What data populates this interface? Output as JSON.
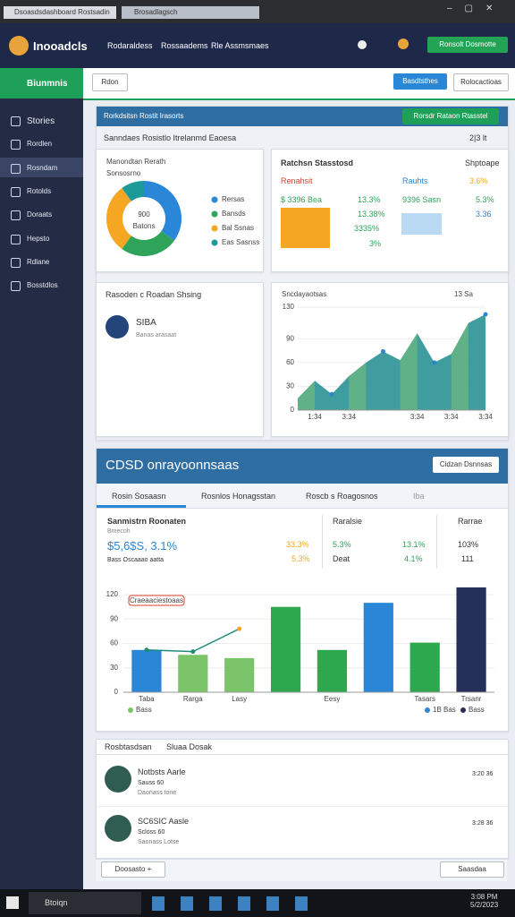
{
  "browser": {
    "tabs": [
      "Dsoasdsdashboard Rostsadin",
      "Brosadlagsch"
    ]
  },
  "app": {
    "brand": "Inooadcls",
    "nav": [
      "Rodaraldess",
      "Rossaadems",
      "Rle Assmsmaes"
    ],
    "cta": "Ronsolt Dosmotte"
  },
  "sidebar": {
    "title": "Biunmnis",
    "items": [
      "Stories",
      "Rordlen",
      "Rosndam",
      "Rotolds",
      "Doraats",
      "Hepsto",
      "Rdlane",
      "Bosstdlos"
    ]
  },
  "toolbar": {
    "select": "Rdon",
    "primary": "Basdtsthes",
    "secondary": "Rolocactioas"
  },
  "overview": {
    "header": "Rorkdsitsn Rostit Irasorts",
    "button": "Rorsdr Rataon Rtasstel",
    "subtitle": "Sanndaes Rosistlo Itrelanmd Eaoesa",
    "meta": "2|3 lt"
  },
  "stats": {
    "title": "Ratchsn Stasstosd",
    "aside": "Shptoape",
    "rows": [
      [
        "Renahsit",
        "Rauhts",
        "3.6%"
      ],
      [
        "$ 3396 Bea",
        "13.3%",
        "9396 Sasn",
        "5.3%"
      ],
      [
        "13.38%",
        "3.36"
      ],
      [
        "3335%",
        "3%"
      ]
    ]
  },
  "person_card": {
    "title": "Rasoden c Roadan Shsing",
    "name": "SIBA",
    "sub": "Banas arasaat"
  },
  "section": {
    "title": "CDSD onrayoonnsaas",
    "button": "Cidzan Dsnnsas",
    "tabs": [
      "Rosin Sosaasn",
      "Rosnlos Honagsstan",
      "Roscb s Roagosnos",
      "Iba"
    ],
    "stats": {
      "title": "Sanmistrn Roonaten",
      "sub": "Bmecoh",
      "big": "$5,6$S, 3.1%",
      "note": "Bass Oscaaao aatta",
      "p1": "33.3%",
      "p2": "5.3%",
      "col2": [
        "Raralsie",
        "5.3%",
        "Deat",
        "13.1%",
        "4.1%"
      ],
      "col3": [
        "Rarrae",
        "103%",
        "111"
      ]
    }
  },
  "list": {
    "tabs": [
      "Rosbtasdsan",
      "Sluaa Dosak"
    ],
    "items": [
      {
        "name": "Notbsts Aarle",
        "sub": "Sauss 60",
        "desc": "Daonass tone",
        "time": "3:20 36"
      },
      {
        "name": "SC6SIC Aasle",
        "sub": "Scloss 60",
        "desc": "Saonass Lotse",
        "time": "3:28 36"
      }
    ],
    "footer": [
      "Doosasto +",
      "Saasdaa"
    ]
  },
  "taskbar": {
    "search": "Btoiqn",
    "time": "3:08 PM",
    "date": "5/2/2023"
  },
  "chart_data": [
    {
      "type": "pie",
      "title": "Manondtan Rerath",
      "subtitle": "Sonsosrno",
      "center": "900",
      "center_sub": "Batons",
      "categories": [
        "Rersas",
        "Bansds",
        "Bal Ssnas",
        "Eas Sasnss"
      ],
      "values": [
        35,
        25,
        30,
        10
      ],
      "colors": [
        "#2a86d6",
        "#2ea35a",
        "#f5a623",
        "#1c9a9a"
      ]
    },
    {
      "type": "area",
      "title": "Sncdayaotsas",
      "aside": "13 Sa",
      "categories": [
        null,
        "1:34",
        null,
        "3:34",
        null,
        null,
        null,
        "3:34",
        null,
        "3:34",
        null,
        "3:34"
      ],
      "values": [
        15,
        37,
        20,
        43,
        60,
        74,
        63,
        97,
        60,
        71,
        110,
        121
      ],
      "color": "#1f8f86",
      "ylim": [
        0,
        130
      ],
      "yticks": [
        0,
        30,
        60,
        90,
        130
      ]
    },
    {
      "type": "bar",
      "annotation": "Craeaaciestoaas",
      "categories": [
        "Taba",
        "Rarga",
        "Lasy",
        null,
        "Eesy",
        null,
        "Tasars",
        "Trsanr"
      ],
      "values": [
        52,
        46,
        42,
        105,
        52,
        110,
        61,
        129
      ],
      "colors": [
        "#2a86d6",
        "#7cc46a",
        "#7cc46a",
        "#2ea84f",
        "#2ea84f",
        "#2a86d6",
        "#2ea84f",
        "#25305a"
      ],
      "line_values": [
        52,
        50,
        78,
        null,
        null,
        null,
        null,
        null
      ],
      "line_color": "#1f8a78",
      "legend": [
        {
          "name": "Bass",
          "color": "#7cc46a"
        },
        {
          "name": "1B Bas",
          "color": "#2a86d6"
        },
        {
          "name": "Bass",
          "color": "#25305a"
        }
      ],
      "ylim": [
        0,
        130
      ],
      "yticks": [
        0,
        30,
        60,
        90,
        120
      ]
    }
  ]
}
